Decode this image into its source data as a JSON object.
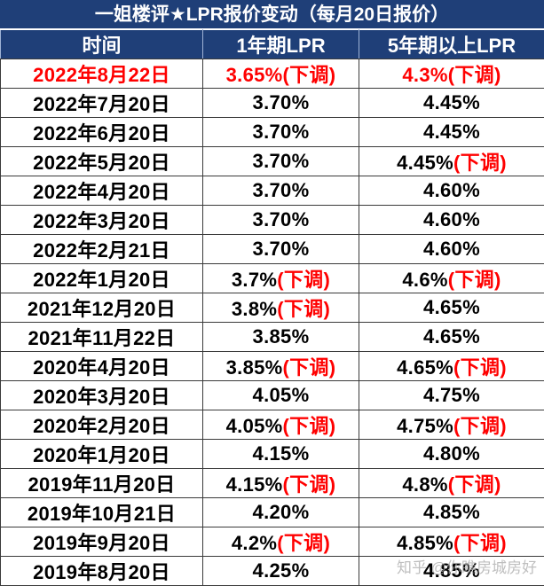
{
  "title": "一姐楼评★LPR报价变动（每月20日报价）",
  "headers": [
    "时间",
    "1年期LPR",
    "5年期以上LPR"
  ],
  "rows": [
    {
      "date": "2022年8月22日",
      "lpr1": "3.65%",
      "lpr1_note": "(下调)",
      "lpr5": "4.3%",
      "lpr5_note": "(下调)"
    },
    {
      "date": "2022年7月20日",
      "lpr1": "3.70%",
      "lpr1_note": "",
      "lpr5": "4.45%",
      "lpr5_note": ""
    },
    {
      "date": "2022年6月20日",
      "lpr1": "3.70%",
      "lpr1_note": "",
      "lpr5": "4.45%",
      "lpr5_note": ""
    },
    {
      "date": "2022年5月20日",
      "lpr1": "3.70%",
      "lpr1_note": "",
      "lpr5": "4.45%",
      "lpr5_note": "(下调)"
    },
    {
      "date": "2022年4月20日",
      "lpr1": "3.70%",
      "lpr1_note": "",
      "lpr5": "4.60%",
      "lpr5_note": ""
    },
    {
      "date": "2022年3月20日",
      "lpr1": "3.70%",
      "lpr1_note": "",
      "lpr5": "4.60%",
      "lpr5_note": ""
    },
    {
      "date": "2022年2月21日",
      "lpr1": "3.70%",
      "lpr1_note": "",
      "lpr5": "4.60%",
      "lpr5_note": ""
    },
    {
      "date": "2022年1月20日",
      "lpr1": "3.7%",
      "lpr1_note": "(下调)",
      "lpr5": "4.6%",
      "lpr5_note": "(下调)"
    },
    {
      "date": "2021年12月20日",
      "lpr1": "3.8%",
      "lpr1_note": "(下调)",
      "lpr5": "4.65%",
      "lpr5_note": ""
    },
    {
      "date": "2021年11月22日",
      "lpr1": "3.85%",
      "lpr1_note": "",
      "lpr5": "4.65%",
      "lpr5_note": ""
    },
    {
      "date": "2020年4月20日",
      "lpr1": "3.85%",
      "lpr1_note": "(下调)",
      "lpr5": "4.65%",
      "lpr5_note": "(下调)"
    },
    {
      "date": "2020年3月20日",
      "lpr1": "4.05%",
      "lpr1_note": "",
      "lpr5": "4.75%",
      "lpr5_note": ""
    },
    {
      "date": "2020年2月20日",
      "lpr1": "4.05%",
      "lpr1_note": "(下调)",
      "lpr5": "4.75%",
      "lpr5_note": "(下调)"
    },
    {
      "date": "2020年1月20日",
      "lpr1": "4.15%",
      "lpr1_note": "",
      "lpr5": "4.80%",
      "lpr5_note": ""
    },
    {
      "date": "2019年11月20日",
      "lpr1": "4.15%",
      "lpr1_note": "(下调)",
      "lpr5": "4.8%",
      "lpr5_note": "(下调)"
    },
    {
      "date": "2019年10月21日",
      "lpr1": "4.20%",
      "lpr1_note": "",
      "lpr5": "4.85%",
      "lpr5_note": ""
    },
    {
      "date": "2019年9月20日",
      "lpr1": "4.2%",
      "lpr1_note": "(下调)",
      "lpr5": "4.85%",
      "lpr5_note": "(下调)"
    },
    {
      "date": "2019年8月20日",
      "lpr1": "4.25%",
      "lpr1_note": "",
      "lpr5": "4.85%",
      "lpr5_note": ""
    }
  ],
  "watermark": "知乎 @你瞧房城房好",
  "colors": {
    "header_bg": "#1f3f78",
    "header_text": "#ffffff",
    "highlight": "#ff0000",
    "text": "#000000"
  }
}
